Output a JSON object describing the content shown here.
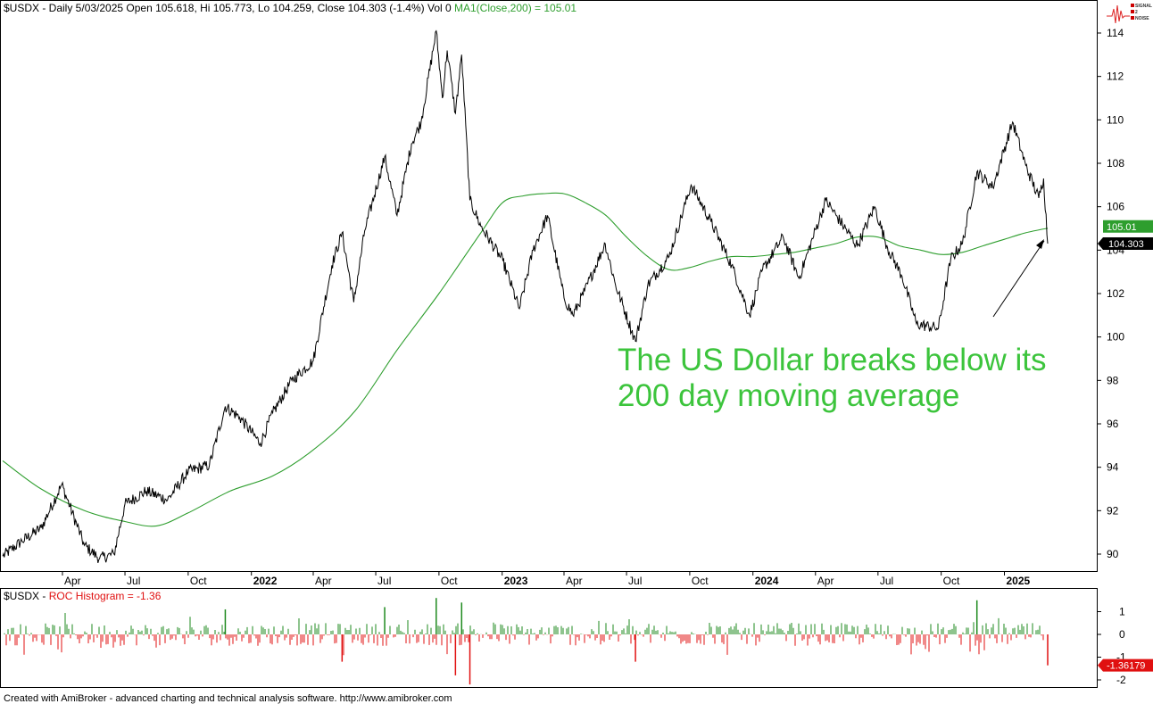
{
  "header": {
    "prefix": "$USDX - Daily 5/03/2025 Open 105.618, Hi 105.773, Lo 104.259, Close 104.303 (-1.4%) Vol 0 ",
    "ma_label": "MA1(Close,200) = 105.01"
  },
  "sub_header": {
    "prefix": "$USDX - ",
    "roc_label": "ROC Histogram = -1.36"
  },
  "logo_text": [
    "SIGNAL",
    "2",
    "NOISE"
  ],
  "footer": "Created with AmiBroker - advanced charting and technical analysis software. http://www.amibroker.com",
  "annotation": [
    "The US Dollar breaks below its",
    "200 day moving average"
  ],
  "colors": {
    "price": "#000000",
    "ma": "#2e9e2e",
    "annotation": "#3cc43c",
    "hist_up": "#1e8a1e",
    "hist_down": "#e01010"
  },
  "chart_data": [
    {
      "type": "line",
      "title": "$USDX - Daily 5/03/2025 Open 105.618, Hi 105.773, Lo 104.259, Close 104.303 (-1.4%) Vol 0",
      "ylim": [
        89,
        115
      ],
      "y_ticks": [
        90,
        92,
        94,
        96,
        98,
        100,
        102,
        104,
        106,
        108,
        110,
        112,
        114
      ],
      "x_tick_labels": [
        "Apr",
        "Jul",
        "Oct",
        "2022",
        "Apr",
        "Jul",
        "Oct",
        "2023",
        "Apr",
        "Jul",
        "Oct",
        "2024",
        "Apr",
        "Jul",
        "Oct",
        "2025"
      ],
      "x_tick_dates": [
        "2021-04",
        "2021-07",
        "2021-10",
        "2022-01",
        "2022-04",
        "2022-07",
        "2022-10",
        "2023-01",
        "2023-04",
        "2023-07",
        "2023-10",
        "2024-01",
        "2024-04",
        "2024-07",
        "2024-10",
        "2025-01"
      ],
      "series": [
        {
          "name": "$USDX",
          "x": [
            "2021-01-04",
            "2021-02-01",
            "2021-03-01",
            "2021-03-31",
            "2021-05-03",
            "2021-05-25",
            "2021-06-15",
            "2021-07-01",
            "2021-08-01",
            "2021-09-01",
            "2021-10-01",
            "2021-11-01",
            "2021-11-24",
            "2021-12-15",
            "2022-01-14",
            "2022-02-01",
            "2022-03-01",
            "2022-04-01",
            "2022-04-28",
            "2022-05-13",
            "2022-05-30",
            "2022-06-15",
            "2022-07-14",
            "2022-08-01",
            "2022-08-22",
            "2022-09-05",
            "2022-09-27",
            "2022-10-06",
            "2022-10-13",
            "2022-10-25",
            "2022-11-03",
            "2022-11-15",
            "2022-12-01",
            "2023-01-02",
            "2023-01-26",
            "2023-02-15",
            "2023-03-08",
            "2023-04-01",
            "2023-04-14",
            "2023-05-01",
            "2023-05-31",
            "2023-06-15",
            "2023-07-14",
            "2023-08-01",
            "2023-09-01",
            "2023-10-03",
            "2023-11-01",
            "2023-12-01",
            "2023-12-27",
            "2024-01-15",
            "2024-02-14",
            "2024-03-08",
            "2024-04-16",
            "2024-05-01",
            "2024-06-01",
            "2024-06-26",
            "2024-07-15",
            "2024-08-05",
            "2024-08-26",
            "2024-09-27",
            "2024-10-15",
            "2024-11-01",
            "2024-11-22",
            "2024-12-15",
            "2025-01-13",
            "2025-02-01",
            "2025-02-20",
            "2025-02-27",
            "2025-03-05"
          ],
          "y": [
            89.9,
            90.6,
            91.2,
            93.2,
            90.4,
            89.8,
            90.0,
            92.3,
            92.9,
            92.5,
            93.8,
            94.1,
            96.8,
            96.3,
            95.1,
            96.5,
            98.0,
            98.9,
            103.3,
            104.8,
            101.6,
            104.9,
            108.3,
            105.6,
            108.9,
            109.9,
            114.1,
            111.0,
            113.2,
            110.3,
            113.0,
            106.3,
            105.1,
            103.5,
            101.3,
            104.0,
            105.6,
            101.8,
            101.0,
            102.1,
            104.3,
            102.4,
            99.8,
            102.4,
            103.7,
            107.0,
            105.3,
            103.3,
            101.0,
            103.1,
            104.6,
            102.7,
            106.3,
            105.6,
            104.2,
            106.0,
            104.1,
            102.8,
            100.6,
            100.4,
            103.6,
            104.3,
            107.6,
            106.9,
            109.9,
            107.9,
            106.4,
            107.3,
            104.3
          ]
        },
        {
          "name": "MA1(Close,200)",
          "x": [
            "2021-01-04",
            "2021-03-01",
            "2021-05-03",
            "2021-07-01",
            "2021-08-16",
            "2021-10-01",
            "2021-12-01",
            "2022-02-01",
            "2022-04-01",
            "2022-06-01",
            "2022-08-01",
            "2022-10-01",
            "2022-12-01",
            "2023-01-02",
            "2023-02-01",
            "2023-03-01",
            "2023-04-01",
            "2023-05-01",
            "2023-06-01",
            "2023-07-01",
            "2023-08-01",
            "2023-09-01",
            "2023-10-01",
            "2023-11-01",
            "2023-12-01",
            "2024-01-01",
            "2024-02-01",
            "2024-03-01",
            "2024-04-01",
            "2024-05-01",
            "2024-06-01",
            "2024-07-01",
            "2024-08-01",
            "2024-09-01",
            "2024-10-01",
            "2024-11-01",
            "2024-12-01",
            "2025-01-01",
            "2025-02-01",
            "2025-03-05"
          ],
          "y": [
            94.3,
            93.0,
            92.0,
            91.5,
            91.3,
            91.9,
            92.9,
            93.6,
            94.8,
            96.6,
            99.4,
            102.0,
            104.8,
            106.2,
            106.5,
            106.6,
            106.6,
            106.2,
            105.6,
            104.6,
            103.7,
            103.1,
            103.2,
            103.5,
            103.7,
            103.7,
            103.8,
            103.9,
            104.1,
            104.3,
            104.6,
            104.6,
            104.2,
            104.0,
            103.8,
            103.9,
            104.2,
            104.5,
            104.8,
            105.01
          ]
        }
      ],
      "last_values": {
        "ma": "105.01",
        "close": "104.303"
      }
    },
    {
      "type": "bar",
      "title": "$USDX - ROC Histogram = -1.36",
      "ylim": [
        -2.3,
        1.7
      ],
      "y_ticks": [
        -2,
        -1,
        0,
        1
      ],
      "last_value": "-1.36179",
      "spikes": [
        {
          "date": "2021-11-24",
          "value": 1.1
        },
        {
          "date": "2022-05-13",
          "value": -1.2
        },
        {
          "date": "2022-07-14",
          "value": 1.2
        },
        {
          "date": "2022-09-27",
          "value": 1.6
        },
        {
          "date": "2022-10-25",
          "value": -1.8
        },
        {
          "date": "2022-11-03",
          "value": 1.4
        },
        {
          "date": "2022-11-15",
          "value": -2.2
        },
        {
          "date": "2023-07-14",
          "value": -1.2
        },
        {
          "date": "2024-11-22",
          "value": 1.5
        },
        {
          "date": "2025-03-05",
          "value": -1.36
        }
      ]
    }
  ]
}
